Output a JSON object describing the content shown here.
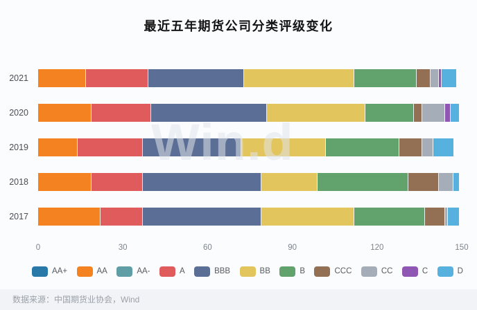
{
  "title": "最近五年期货公司分类评级变化",
  "watermark": "Win.d",
  "source": "数据来源：中国期货业协会，Wind",
  "chart_data": {
    "type": "bar",
    "orientation": "horizontal",
    "stacked": true,
    "title": "最近五年期货公司分类评级变化",
    "categories": [
      "2021",
      "2020",
      "2019",
      "2018",
      "2017"
    ],
    "series": [
      {
        "name": "AA+",
        "color": "#2878a8",
        "values": [
          0,
          0,
          0,
          0,
          0
        ]
      },
      {
        "name": "AA",
        "color": "#f58220",
        "values": [
          17,
          19,
          14,
          19,
          22
        ]
      },
      {
        "name": "AA-",
        "color": "#5f9ea4",
        "values": [
          0,
          0,
          0,
          0,
          0
        ]
      },
      {
        "name": "A",
        "color": "#e05c5c",
        "values": [
          22,
          21,
          23,
          18,
          15
        ]
      },
      {
        "name": "BBB",
        "color": "#5b6e96",
        "values": [
          34,
          41,
          35,
          42,
          42
        ]
      },
      {
        "name": "BB",
        "color": "#e3c55e",
        "values": [
          39,
          35,
          30,
          20,
          33
        ]
      },
      {
        "name": "B",
        "color": "#61a26d",
        "values": [
          22,
          17,
          26,
          32,
          25
        ]
      },
      {
        "name": "CCC",
        "color": "#937053",
        "values": [
          5,
          3,
          8,
          11,
          7
        ]
      },
      {
        "name": "CC",
        "color": "#a4adb8",
        "values": [
          3,
          8,
          4,
          5,
          1
        ]
      },
      {
        "name": "C",
        "color": "#8f57b3",
        "values": [
          1,
          2,
          0,
          0,
          0
        ]
      },
      {
        "name": "D",
        "color": "#56b1de",
        "values": [
          5,
          3,
          7,
          2,
          4
        ]
      }
    ],
    "xlim": [
      0,
      150
    ],
    "xticks": [
      0,
      30,
      60,
      90,
      120,
      150
    ],
    "legend_position": "bottom",
    "grid": false
  }
}
